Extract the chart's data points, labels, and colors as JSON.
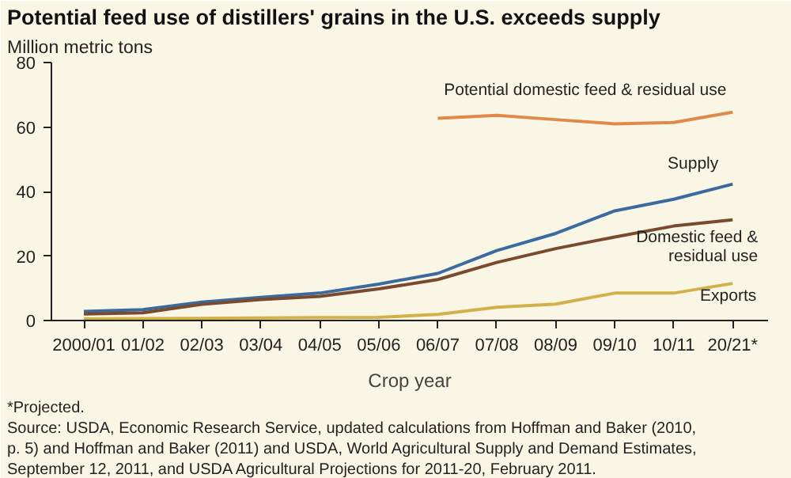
{
  "chart_data": {
    "type": "line",
    "title": "Potential feed use of distillers' grains in the U.S. exceeds supply",
    "ylabel": "Million metric tons",
    "xlabel": "Crop year",
    "categories": [
      "2000/01",
      "01/02",
      "02/03",
      "03/04",
      "04/05",
      "05/06",
      "06/07",
      "07/08",
      "08/09",
      "09/10",
      "10/11",
      "20/21*"
    ],
    "series": [
      {
        "name": "Potential domestic feed & residual use",
        "color": "#e08a4a",
        "values": [
          null,
          null,
          null,
          null,
          null,
          null,
          62.7,
          63.6,
          62.3,
          61.0,
          61.4,
          64.6
        ]
      },
      {
        "name": "Supply",
        "color": "#3a6a9e",
        "values": [
          2.8,
          3.4,
          5.7,
          7.2,
          8.5,
          11.3,
          14.6,
          21.7,
          27.0,
          34.0,
          37.6,
          42.3
        ]
      },
      {
        "name": "Domestic feed & residual use",
        "color": "#7a4a2e",
        "values": [
          2.0,
          2.4,
          5.0,
          6.5,
          7.5,
          9.8,
          12.7,
          18.0,
          22.3,
          25.9,
          29.3,
          31.2
        ]
      },
      {
        "name": "Exports",
        "color": "#d4b04a",
        "values": [
          0.5,
          0.6,
          0.7,
          0.8,
          0.9,
          1.0,
          1.9,
          4.1,
          5.1,
          8.5,
          8.5,
          11.5
        ]
      }
    ],
    "ylim": [
      0,
      80
    ],
    "yticks": [
      0,
      20,
      40,
      60,
      80
    ],
    "grid": false,
    "marker": "none",
    "line_style": "solid",
    "annotations": [
      "*Projected.",
      "Source:  USDA, Economic Research Service, updated calculations from Hoffman and Baker (2010, p. 5) and Hoffman and Baker (2011) and USDA, World Agricultural Supply and Demand Estimates, September 12, 2011, and USDA Agricultural Projections for 2011-20, February 2011."
    ]
  }
}
